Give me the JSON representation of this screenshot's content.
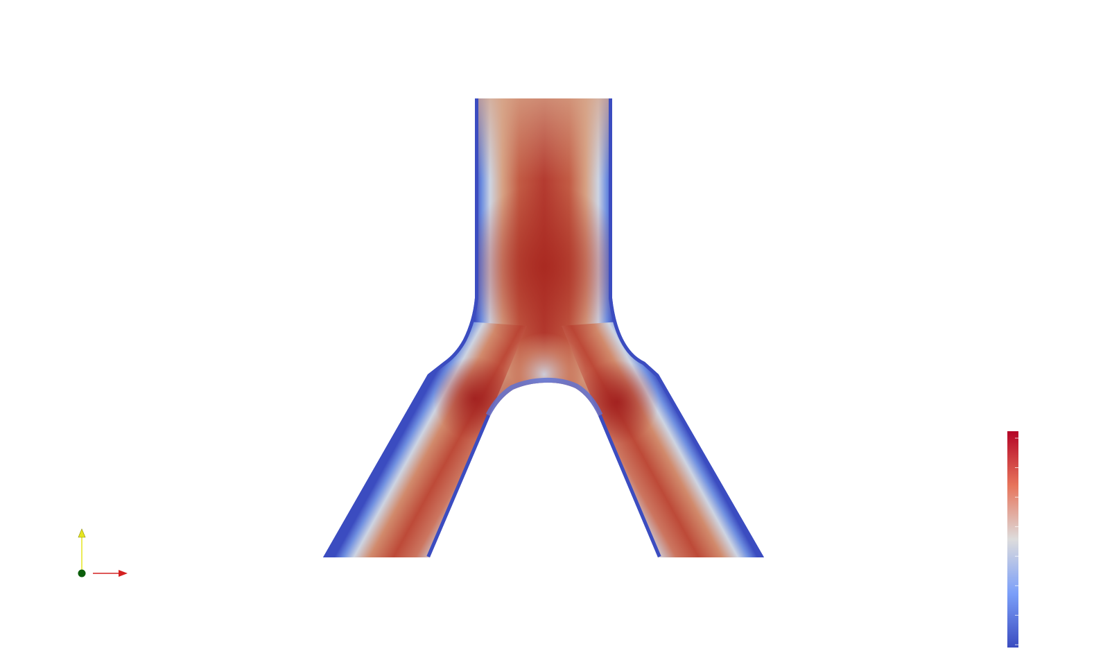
{
  "viewport": {
    "background": "#ffffff",
    "colormap": {
      "name": "cool-to-warm",
      "low": "#3b4cc0",
      "mid": "#dddcdc",
      "high": "#b40426"
    }
  },
  "render": {
    "object": "bifurcation-mesh",
    "shading": "velocity-magnitude"
  },
  "orientation_axes": {
    "x_color": "#d42020",
    "y_color": "#e6e620",
    "origin_color": "#0b5e0b"
  },
  "color_legend": {
    "ticks": 8,
    "labels_visible": false
  }
}
